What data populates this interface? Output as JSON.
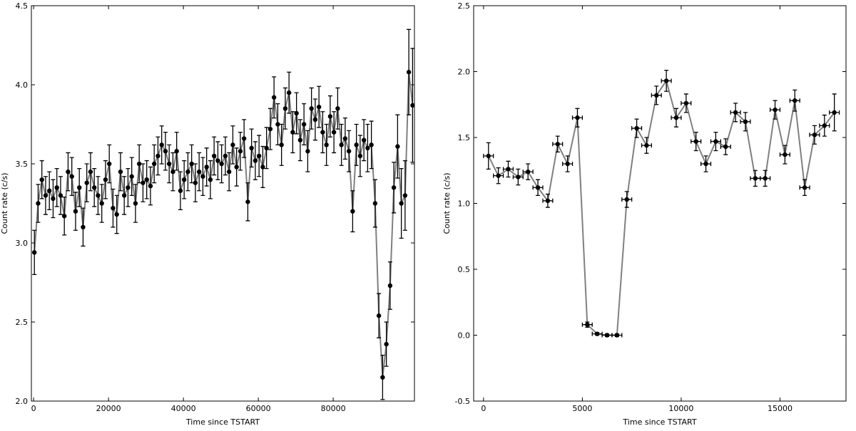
{
  "chart_data": [
    {
      "type": "line",
      "xlabel": "Time since TSTART",
      "ylabel": "Count rate (c/s)",
      "xlim": [
        -600,
        101700
      ],
      "ylim": [
        2.0,
        4.5
      ],
      "xticks": [
        0,
        20000,
        40000,
        60000,
        80000
      ],
      "yticks": [
        {
          "value": 2.0,
          "label": "2.0"
        },
        2.5,
        {
          "value": 3.0,
          "label": "3.0"
        },
        3.5,
        {
          "value": 4.0,
          "label": "4.0"
        },
        4.5
      ],
      "line_color": "#808080",
      "marker_color": "#000000",
      "x": [
        200,
        1200,
        2200,
        3200,
        4200,
        5200,
        6200,
        7200,
        8200,
        9200,
        10200,
        11200,
        12200,
        13200,
        14200,
        15200,
        16200,
        17200,
        18200,
        19200,
        20200,
        21200,
        22200,
        23200,
        24200,
        25200,
        26200,
        27200,
        28200,
        29200,
        30200,
        31200,
        32200,
        33200,
        34200,
        35200,
        36200,
        37200,
        38200,
        39200,
        40200,
        41200,
        42200,
        43200,
        44200,
        45200,
        46200,
        47200,
        48200,
        49200,
        50200,
        51200,
        52200,
        53200,
        54200,
        55200,
        56200,
        57200,
        58200,
        59200,
        60200,
        61200,
        62200,
        63200,
        64200,
        65200,
        66200,
        67200,
        68200,
        69200,
        70200,
        71200,
        72200,
        73200,
        74200,
        75200,
        76200,
        77200,
        78200,
        79200,
        80200,
        81200,
        82200,
        83200,
        84200,
        85200,
        86200,
        87200,
        88200,
        89200,
        90200,
        91200,
        92200,
        93200,
        94200,
        95200,
        96200,
        97200,
        98200,
        99200,
        100200,
        101200
      ],
      "values": [
        2.94,
        3.25,
        3.4,
        3.3,
        3.33,
        3.28,
        3.35,
        3.3,
        3.17,
        3.45,
        3.42,
        3.2,
        3.35,
        3.1,
        3.38,
        3.45,
        3.35,
        3.3,
        3.25,
        3.4,
        3.5,
        3.22,
        3.18,
        3.45,
        3.3,
        3.35,
        3.42,
        3.25,
        3.5,
        3.38,
        3.4,
        3.36,
        3.5,
        3.55,
        3.62,
        3.58,
        3.5,
        3.45,
        3.58,
        3.33,
        3.4,
        3.45,
        3.5,
        3.38,
        3.45,
        3.42,
        3.48,
        3.4,
        3.55,
        3.52,
        3.5,
        3.55,
        3.45,
        3.62,
        3.48,
        3.58,
        3.66,
        3.26,
        3.6,
        3.52,
        3.55,
        3.48,
        3.6,
        3.72,
        3.92,
        3.75,
        3.62,
        3.85,
        3.95,
        3.7,
        3.82,
        3.65,
        3.75,
        3.58,
        3.85,
        3.78,
        3.86,
        3.7,
        3.62,
        3.8,
        3.7,
        3.85,
        3.62,
        3.66,
        3.58,
        3.2,
        3.62,
        3.55,
        3.65,
        3.6,
        3.62,
        3.25,
        2.54,
        2.15,
        2.36,
        2.73,
        3.35,
        3.61,
        3.25,
        3.3,
        4.08,
        3.87
      ],
      "errors": [
        0.14,
        0.12,
        0.12,
        0.12,
        0.12,
        0.12,
        0.12,
        0.12,
        0.12,
        0.12,
        0.12,
        0.12,
        0.12,
        0.12,
        0.12,
        0.12,
        0.12,
        0.12,
        0.12,
        0.12,
        0.12,
        0.12,
        0.12,
        0.12,
        0.12,
        0.12,
        0.12,
        0.12,
        0.12,
        0.12,
        0.12,
        0.12,
        0.12,
        0.12,
        0.12,
        0.12,
        0.12,
        0.12,
        0.12,
        0.12,
        0.12,
        0.12,
        0.12,
        0.12,
        0.12,
        0.12,
        0.12,
        0.12,
        0.12,
        0.12,
        0.12,
        0.12,
        0.12,
        0.12,
        0.12,
        0.12,
        0.12,
        0.12,
        0.12,
        0.12,
        0.13,
        0.13,
        0.13,
        0.13,
        0.13,
        0.13,
        0.13,
        0.13,
        0.13,
        0.13,
        0.13,
        0.13,
        0.13,
        0.13,
        0.13,
        0.13,
        0.13,
        0.13,
        0.13,
        0.13,
        0.13,
        0.13,
        0.13,
        0.13,
        0.13,
        0.13,
        0.13,
        0.13,
        0.13,
        0.15,
        0.15,
        0.15,
        0.14,
        0.14,
        0.14,
        0.15,
        0.16,
        0.2,
        0.22,
        0.22,
        0.27,
        0.36
      ]
    },
    {
      "type": "line",
      "xlabel": "Time since TSTART",
      "ylabel": "Count rate (c/s)",
      "xlim": [
        -500,
        18340
      ],
      "ylim": [
        -0.5,
        2.5
      ],
      "xticks": [
        0,
        5000,
        10000,
        15000
      ],
      "yticks": [
        -0.5,
        {
          "value": 0.0,
          "label": "0.0"
        },
        0.5,
        {
          "value": 1.0,
          "label": "1.0"
        },
        1.5,
        {
          "value": 2.0,
          "label": "2.0"
        },
        2.5
      ],
      "line_color": "#808080",
      "marker_color": "#000000",
      "x": [
        250,
        750,
        1250,
        1750,
        2250,
        2750,
        3250,
        3750,
        4250,
        4750,
        5250,
        5750,
        6250,
        6750,
        7250,
        7750,
        8250,
        8750,
        9250,
        9750,
        10250,
        10750,
        11250,
        11750,
        12250,
        12750,
        13250,
        13750,
        14250,
        14750,
        15250,
        15750,
        16250,
        16750,
        17250,
        17750
      ],
      "values": [
        1.36,
        1.21,
        1.26,
        1.2,
        1.24,
        1.12,
        1.02,
        1.45,
        1.3,
        1.65,
        0.08,
        0.01,
        0.0,
        0.0,
        1.03,
        1.57,
        1.44,
        1.82,
        1.93,
        1.65,
        1.76,
        1.47,
        1.3,
        1.47,
        1.43,
        1.69,
        1.62,
        1.19,
        1.19,
        1.71,
        1.37,
        1.78,
        1.12,
        1.52,
        1.59,
        1.69
      ],
      "errors": [
        0.1,
        0.06,
        0.06,
        0.06,
        0.06,
        0.06,
        0.05,
        0.06,
        0.06,
        0.07,
        0.02,
        0.01,
        0.01,
        0.01,
        0.06,
        0.07,
        0.06,
        0.07,
        0.08,
        0.07,
        0.07,
        0.07,
        0.06,
        0.07,
        0.06,
        0.07,
        0.07,
        0.06,
        0.06,
        0.07,
        0.07,
        0.08,
        0.06,
        0.07,
        0.08,
        0.14
      ],
      "xerrors": [
        250,
        250,
        250,
        250,
        250,
        250,
        250,
        250,
        250,
        250,
        250,
        250,
        250,
        250,
        250,
        250,
        250,
        250,
        250,
        250,
        250,
        250,
        250,
        250,
        250,
        250,
        250,
        250,
        250,
        250,
        250,
        250,
        250,
        250,
        250,
        250
      ]
    }
  ]
}
